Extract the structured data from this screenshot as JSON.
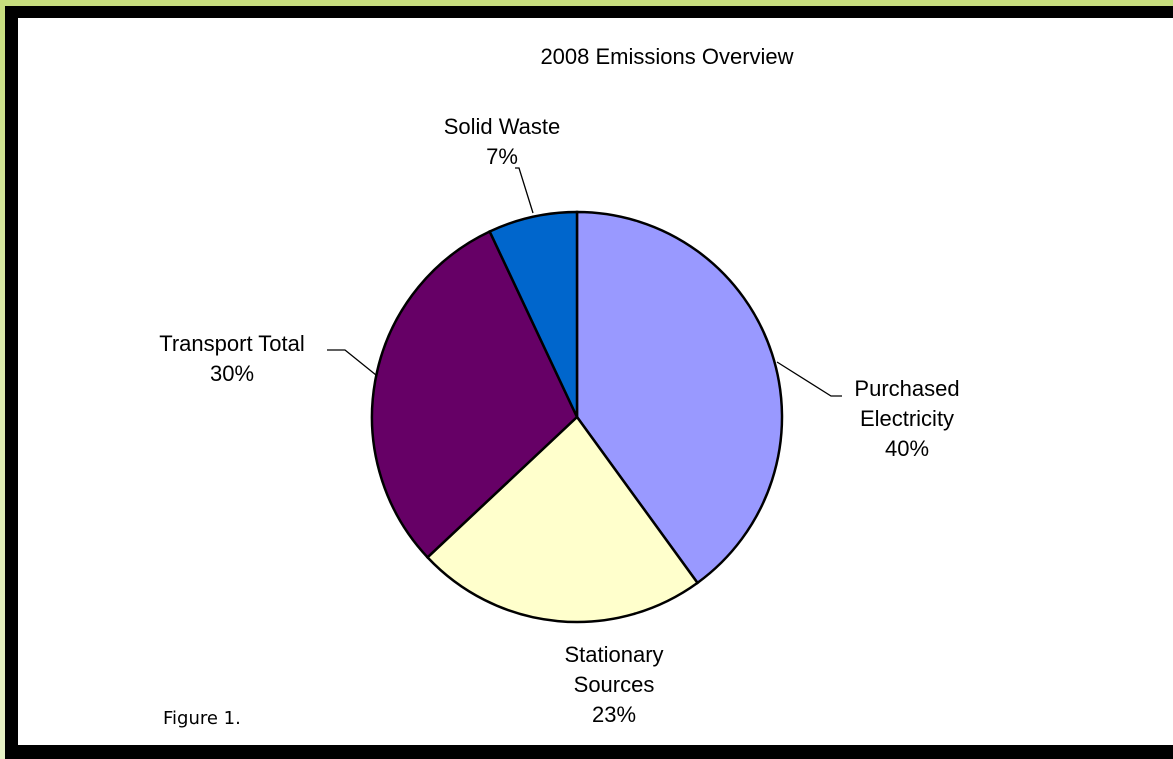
{
  "caption": "Figure 1.",
  "chart_data": {
    "type": "pie",
    "title": "2008 Emissions Overview",
    "slices": [
      {
        "label": [
          "Purchased",
          "Electricity"
        ],
        "value": 40,
        "value_label": "40%",
        "color": "#9999ff"
      },
      {
        "label": [
          "Stationary",
          "Sources"
        ],
        "value": 23,
        "value_label": "23%",
        "color": "#ffffcc"
      },
      {
        "label": [
          "Transport Total"
        ],
        "value": 30,
        "value_label": "30%",
        "color": "#660066"
      },
      {
        "label": [
          "Solid Waste"
        ],
        "value": 7,
        "value_label": "7%",
        "color": "#0066cc"
      }
    ]
  }
}
